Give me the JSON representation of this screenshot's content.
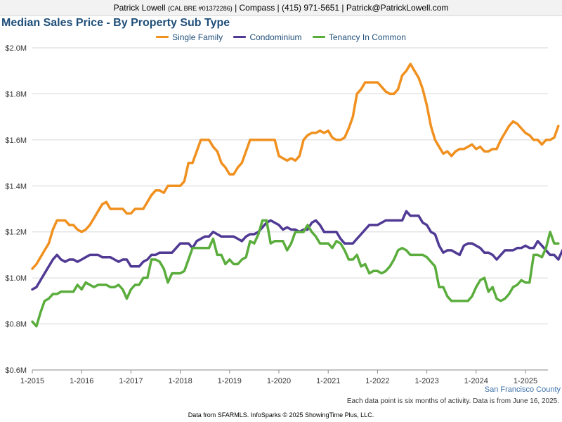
{
  "header": {
    "name": "Patrick Lowell",
    "license": "(CAL BRE #01372286)",
    "rest": "| Compass | (415) 971-5651 | Patrick@PatrickLowell.com"
  },
  "region_label": "San Francisco County",
  "note": "Each data point is six months of activity. Data is from June 16, 2025.",
  "footer": "Data from SFARMLS. InfoSparks © 2025 ShowingTime Plus, LLC.",
  "colors": {
    "single_family": "#f0901f",
    "condominium": "#503a94",
    "tenancy_in_common": "#5aad3c",
    "title": "#1f4e79"
  },
  "chart_data": {
    "type": "line",
    "title": "Median Sales Price - By Property Sub Type",
    "xlabel": "",
    "ylabel": "",
    "x_start": "2015-01",
    "x_step": "1 month",
    "x_ticks": [
      "1-2015",
      "1-2016",
      "1-2017",
      "1-2018",
      "1-2019",
      "1-2020",
      "1-2021",
      "1-2022",
      "1-2023",
      "1-2024",
      "1-2025"
    ],
    "y_ticks": [
      "$0.6M",
      "$0.8M",
      "$1.0M",
      "$1.2M",
      "$1.4M",
      "$1.6M",
      "$1.8M",
      "$2.0M"
    ],
    "ylim": [
      0.6,
      2.0
    ],
    "y_unit": "$M",
    "grid": "horizontal",
    "legend_position": "top",
    "series": [
      {
        "name": "Single Family",
        "color": "#f0901f",
        "values": [
          1.04,
          1.06,
          1.09,
          1.12,
          1.15,
          1.21,
          1.25,
          1.25,
          1.25,
          1.23,
          1.23,
          1.21,
          1.2,
          1.21,
          1.23,
          1.26,
          1.29,
          1.32,
          1.33,
          1.3,
          1.3,
          1.3,
          1.3,
          1.28,
          1.28,
          1.3,
          1.3,
          1.3,
          1.33,
          1.36,
          1.38,
          1.38,
          1.37,
          1.4,
          1.4,
          1.4,
          1.4,
          1.42,
          1.5,
          1.5,
          1.55,
          1.6,
          1.6,
          1.6,
          1.57,
          1.55,
          1.5,
          1.48,
          1.45,
          1.45,
          1.48,
          1.5,
          1.55,
          1.6,
          1.6,
          1.6,
          1.6,
          1.6,
          1.6,
          1.6,
          1.53,
          1.52,
          1.51,
          1.52,
          1.51,
          1.53,
          1.6,
          1.62,
          1.63,
          1.63,
          1.64,
          1.63,
          1.64,
          1.61,
          1.6,
          1.6,
          1.61,
          1.65,
          1.7,
          1.8,
          1.82,
          1.85,
          1.85,
          1.85,
          1.85,
          1.83,
          1.81,
          1.8,
          1.8,
          1.82,
          1.88,
          1.9,
          1.93,
          1.9,
          1.87,
          1.82,
          1.75,
          1.66,
          1.6,
          1.57,
          1.54,
          1.55,
          1.53,
          1.55,
          1.56,
          1.56,
          1.57,
          1.58,
          1.56,
          1.57,
          1.55,
          1.55,
          1.56,
          1.56,
          1.6,
          1.63,
          1.66,
          1.68,
          1.67,
          1.65,
          1.63,
          1.62,
          1.6,
          1.6,
          1.58,
          1.6,
          1.6,
          1.61,
          1.66
        ]
      },
      {
        "name": "Condominium",
        "color": "#503a94",
        "values": [
          0.95,
          0.96,
          0.99,
          1.02,
          1.05,
          1.08,
          1.1,
          1.08,
          1.07,
          1.08,
          1.08,
          1.07,
          1.08,
          1.09,
          1.1,
          1.1,
          1.1,
          1.09,
          1.09,
          1.09,
          1.08,
          1.07,
          1.08,
          1.08,
          1.05,
          1.05,
          1.05,
          1.07,
          1.08,
          1.1,
          1.1,
          1.11,
          1.11,
          1.11,
          1.11,
          1.13,
          1.15,
          1.15,
          1.15,
          1.13,
          1.16,
          1.17,
          1.18,
          1.18,
          1.2,
          1.19,
          1.18,
          1.18,
          1.18,
          1.18,
          1.17,
          1.16,
          1.18,
          1.19,
          1.19,
          1.2,
          1.22,
          1.24,
          1.25,
          1.24,
          1.23,
          1.21,
          1.22,
          1.21,
          1.21,
          1.2,
          1.21,
          1.21,
          1.24,
          1.25,
          1.23,
          1.2,
          1.2,
          1.2,
          1.2,
          1.17,
          1.15,
          1.15,
          1.15,
          1.17,
          1.19,
          1.21,
          1.23,
          1.23,
          1.23,
          1.24,
          1.25,
          1.25,
          1.25,
          1.25,
          1.25,
          1.29,
          1.27,
          1.27,
          1.27,
          1.24,
          1.23,
          1.2,
          1.19,
          1.14,
          1.11,
          1.12,
          1.12,
          1.11,
          1.1,
          1.14,
          1.15,
          1.15,
          1.14,
          1.13,
          1.11,
          1.11,
          1.1,
          1.08,
          1.1,
          1.12,
          1.12,
          1.12,
          1.13,
          1.13,
          1.14,
          1.13,
          1.13,
          1.16,
          1.14,
          1.12,
          1.1,
          1.1,
          1.08,
          1.12
        ]
      },
      {
        "name": "Tenancy In Common",
        "color": "#5aad3c",
        "values": [
          0.81,
          0.79,
          0.85,
          0.9,
          0.91,
          0.93,
          0.93,
          0.94,
          0.94,
          0.94,
          0.94,
          0.97,
          0.95,
          0.98,
          0.97,
          0.96,
          0.97,
          0.97,
          0.97,
          0.96,
          0.96,
          0.97,
          0.95,
          0.91,
          0.95,
          0.97,
          0.97,
          1.0,
          1.0,
          1.08,
          1.08,
          1.07,
          1.04,
          0.98,
          1.02,
          1.02,
          1.02,
          1.03,
          1.08,
          1.13,
          1.13,
          1.13,
          1.13,
          1.13,
          1.17,
          1.1,
          1.1,
          1.06,
          1.08,
          1.06,
          1.06,
          1.08,
          1.09,
          1.16,
          1.15,
          1.19,
          1.25,
          1.25,
          1.15,
          1.16,
          1.16,
          1.16,
          1.12,
          1.15,
          1.2,
          1.2,
          1.2,
          1.23,
          1.2,
          1.18,
          1.15,
          1.15,
          1.15,
          1.13,
          1.16,
          1.15,
          1.12,
          1.08,
          1.08,
          1.1,
          1.05,
          1.06,
          1.02,
          1.03,
          1.03,
          1.02,
          1.03,
          1.05,
          1.08,
          1.12,
          1.13,
          1.12,
          1.1,
          1.1,
          1.1,
          1.1,
          1.09,
          1.07,
          1.05,
          0.96,
          0.96,
          0.92,
          0.9,
          0.9,
          0.9,
          0.9,
          0.9,
          0.92,
          0.96,
          0.99,
          1.0,
          0.94,
          0.96,
          0.91,
          0.9,
          0.91,
          0.93,
          0.96,
          0.97,
          0.99,
          0.98,
          0.98,
          1.1,
          1.1,
          1.09,
          1.13,
          1.2,
          1.15,
          1.15
        ]
      }
    ]
  }
}
